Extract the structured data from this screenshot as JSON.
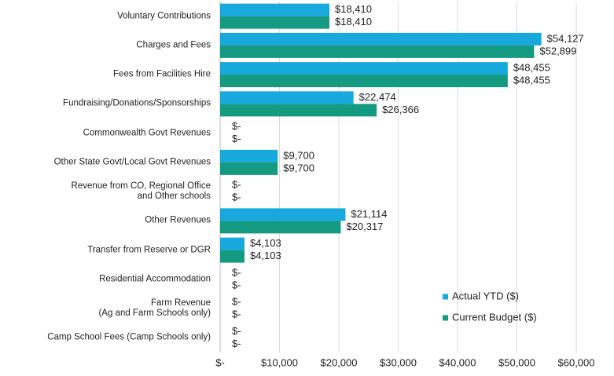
{
  "chart_data": {
    "type": "hbar",
    "categories": [
      "Voluntary Contributions",
      "Charges and Fees",
      "Fees from Facilities Hire",
      "Fundraising/Donations/Sponsorships",
      "Commonwealth Govt Revenues",
      "Other State Govt/Local Govt Revenues",
      "Revenue from CO, Regional Office\nand Other schools",
      "Other Revenues",
      "Transfer from Reserve or DGR",
      "Residential Accommodation",
      "Farm Revenue\n(Ag and Farm Schools only)",
      "Camp School Fees (Camp Schools only)"
    ],
    "series": [
      {
        "name": "Actual YTD ($)",
        "color": "#17a8de",
        "values": [
          18410,
          54127,
          48455,
          22474,
          0,
          9700,
          0,
          21114,
          4103,
          0,
          0,
          0
        ],
        "value_labels": [
          "$18,410",
          "$54,127",
          "$48,455",
          "$22,474",
          "$-",
          "$9,700",
          "$-",
          "$21,114",
          "$4,103",
          "$-",
          "$-",
          "$-"
        ]
      },
      {
        "name": "Current Budget ($)",
        "color": "#139a80",
        "values": [
          18410,
          52899,
          48455,
          26366,
          0,
          9700,
          0,
          20317,
          4103,
          0,
          0,
          0
        ],
        "value_labels": [
          "$18,410",
          "$52,899",
          "$48,455",
          "$26,366",
          "$-",
          "$9,700",
          "$-",
          "$20,317",
          "$4,103",
          "$-",
          "$-",
          "$-"
        ]
      }
    ],
    "xlim": [
      0,
      60000
    ],
    "xticks": [
      {
        "value": 0,
        "label": "$-"
      },
      {
        "value": 10000,
        "label": "$10,000"
      },
      {
        "value": 20000,
        "label": "$20,000"
      },
      {
        "value": 30000,
        "label": "$30,000"
      },
      {
        "value": 40000,
        "label": "$40,000"
      },
      {
        "value": 50000,
        "label": "$50,000"
      },
      {
        "value": 60000,
        "label": "$60,000"
      }
    ],
    "grid": true,
    "legend": "lower right"
  }
}
